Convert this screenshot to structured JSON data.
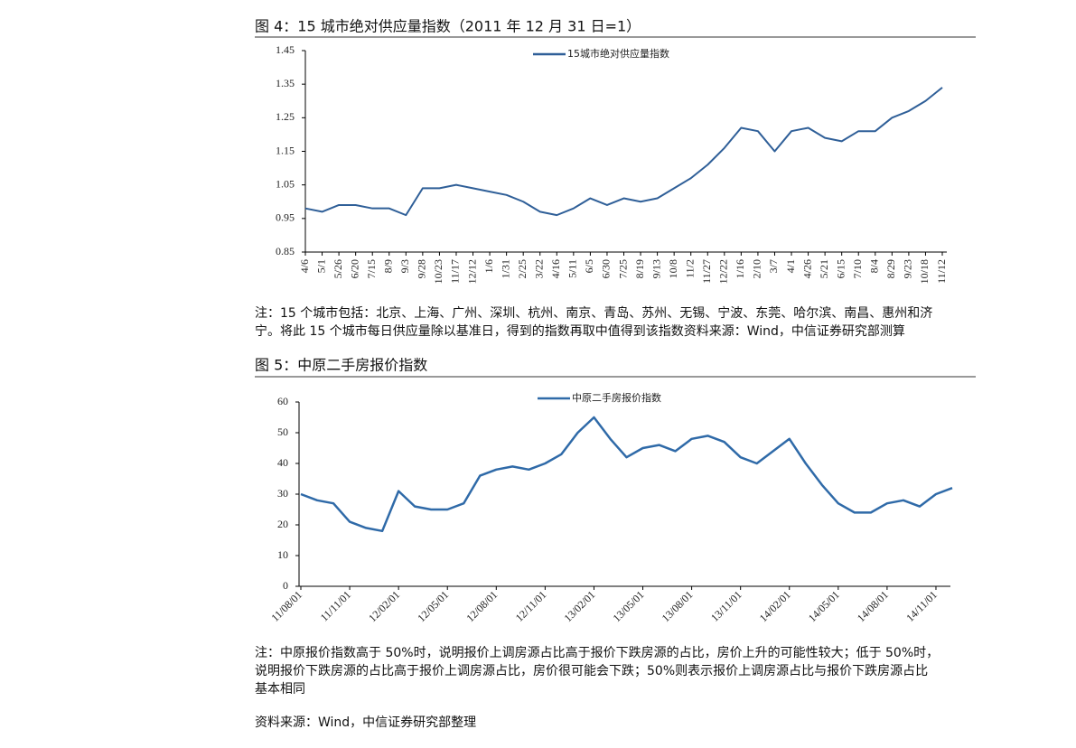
{
  "chart_data": [
    {
      "type": "line",
      "title": "图 4：15 城市绝对供应量指数（2011 年 12 月 31 日=1）",
      "categories": [
        "4/6",
        "5/1",
        "5/26",
        "6/20",
        "7/15",
        "8/9",
        "9/3",
        "9/28",
        "10/23",
        "11/17",
        "12/12",
        "1/6",
        "1/31",
        "2/25",
        "3/22",
        "4/16",
        "5/11",
        "6/5",
        "6/30",
        "7/25",
        "8/19",
        "9/13",
        "10/8",
        "11/2",
        "11/27",
        "12/22",
        "1/16",
        "2/10",
        "3/7",
        "4/1",
        "4/26",
        "5/21",
        "6/15",
        "7/10",
        "8/4",
        "8/29",
        "9/23",
        "10/18",
        "11/12"
      ],
      "series": [
        {
          "name": "15城市绝对供应量指数",
          "color": "#2f5f98",
          "values": [
            0.98,
            0.97,
            0.99,
            0.99,
            0.98,
            0.98,
            0.96,
            1.04,
            1.04,
            1.05,
            1.04,
            1.03,
            1.02,
            1.0,
            0.97,
            0.96,
            0.98,
            1.01,
            0.99,
            1.01,
            1.0,
            1.01,
            1.04,
            1.07,
            1.11,
            1.16,
            1.22,
            1.21,
            1.15,
            1.21,
            1.22,
            1.19,
            1.18,
            1.21,
            1.21,
            1.25,
            1.27,
            1.3,
            1.34
          ]
        }
      ],
      "ylim": [
        0.85,
        1.45
      ],
      "yticks": [
        0.85,
        0.95,
        1.05,
        1.15,
        1.25,
        1.35,
        1.45
      ]
    },
    {
      "type": "line",
      "title": "图 5：中原二手房报价指数",
      "categories": [
        "11/08/01",
        null,
        null,
        "11/11/01",
        null,
        null,
        "12/02/01",
        null,
        null,
        "12/05/01",
        null,
        null,
        "12/08/01",
        null,
        null,
        "12/11/01",
        null,
        null,
        "13/02/01",
        null,
        null,
        "13/05/01",
        null,
        null,
        "13/08/01",
        null,
        null,
        "13/11/01",
        null,
        null,
        "14/02/01",
        null,
        null,
        "14/05/01",
        null,
        null,
        "14/08/01",
        null,
        null,
        "14/11/01",
        null
      ],
      "series": [
        {
          "name": "中原二手房报价指数",
          "color": "#2f6aa8",
          "values": [
            30,
            28,
            27,
            21,
            19,
            18,
            31,
            26,
            25,
            25,
            27,
            36,
            38,
            39,
            38,
            40,
            43,
            50,
            55,
            48,
            42,
            45,
            46,
            44,
            48,
            49,
            47,
            42,
            40,
            44,
            48,
            40,
            33,
            27,
            24,
            24,
            27,
            28,
            26,
            30,
            32
          ]
        }
      ],
      "ylim": [
        0,
        60
      ],
      "yticks": [
        0,
        10,
        20,
        30,
        40,
        50,
        60
      ]
    }
  ],
  "note1": [
    "注：15 个城市包括：北京、上海、广州、深圳、杭州、南京、青岛、苏州、无锡、宁波、东莞、哈尔滨、南昌、惠州和济",
    "宁。将此 15 个城市每日供应量除以基准日，得到的指数再取中值得到该指数资料来源：Wind，中信证券研究部测算"
  ],
  "note2": [
    "注：中原报价指数高于 50%时，说明报价上调房源占比高于报价下跌房源的占比，房价上升的可能性较大；低于 50%时，",
    "说明报价下跌房源的占比高于报价上调房源占比，房价很可能会下跌；50%则表示报价上调房源占比与报价下跌房源占比",
    "基本相同"
  ],
  "source": "资料来源：Wind，中信证券研究部整理"
}
